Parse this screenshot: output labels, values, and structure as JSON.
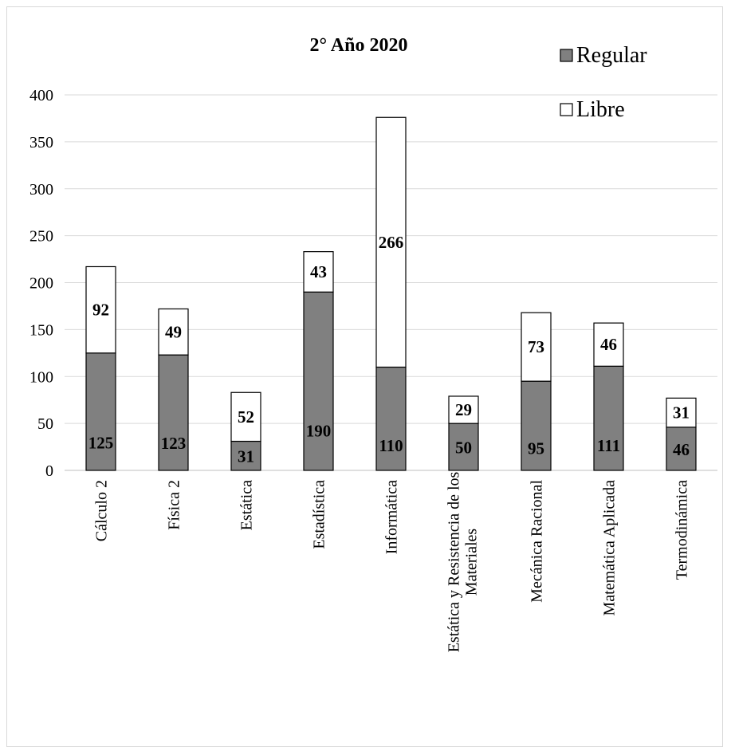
{
  "chart_data": {
    "type": "bar",
    "stacked": true,
    "title": "2° Año 2020",
    "xlabel": "",
    "ylabel": "",
    "ylim": [
      0,
      400
    ],
    "yticks": [
      0,
      50,
      100,
      150,
      200,
      250,
      300,
      350,
      400
    ],
    "grid": true,
    "legend_position": "top-right",
    "categories": [
      "Cálculo 2",
      "Física 2",
      "Estática",
      "Estadística",
      "Informática",
      "Estática y Resistencia de los Materiales",
      "Mecánica Racional",
      "Matemática Aplicada",
      "Termodinámica"
    ],
    "series": [
      {
        "name": "Regular",
        "color": "#808080",
        "values": [
          125,
          123,
          31,
          190,
          110,
          50,
          95,
          111,
          46
        ]
      },
      {
        "name": "Libre",
        "color": "#ffffff",
        "values": [
          92,
          49,
          52,
          43,
          266,
          29,
          73,
          46,
          31
        ]
      }
    ]
  }
}
